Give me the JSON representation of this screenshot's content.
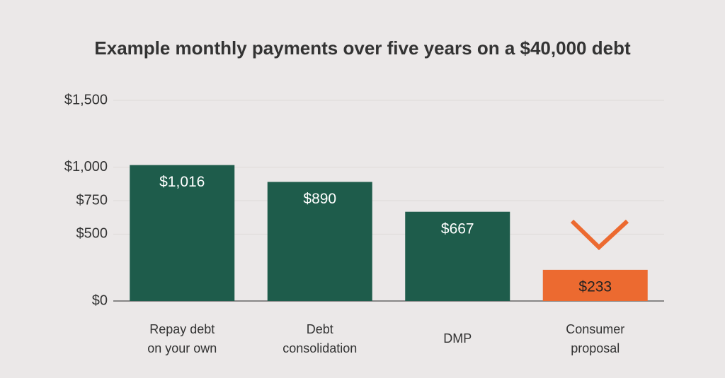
{
  "chart_data": {
    "type": "bar",
    "title": "Example monthly payments over five years on a $40,000 debt",
    "categories": [
      "Repay debt\non your own",
      "Debt\nconsolidation",
      "DMP",
      "Consumer\nproposal"
    ],
    "values": [
      1016,
      890,
      667,
      233
    ],
    "value_labels": [
      "$1,016",
      "$890",
      "$667",
      "$233"
    ],
    "colors": [
      "#1e5c4b",
      "#1e5c4b",
      "#1e5c4b",
      "#ec6a30"
    ],
    "ylim": [
      0,
      1500
    ],
    "yticks": [
      {
        "value": 0,
        "label": "$0"
      },
      {
        "value": 500,
        "label": "$500"
      },
      {
        "value": 750,
        "label": "$750"
      },
      {
        "value": 1000,
        "label": "$1,000"
      },
      {
        "value": 1500,
        "label": "$1,500"
      }
    ],
    "grid": true
  }
}
